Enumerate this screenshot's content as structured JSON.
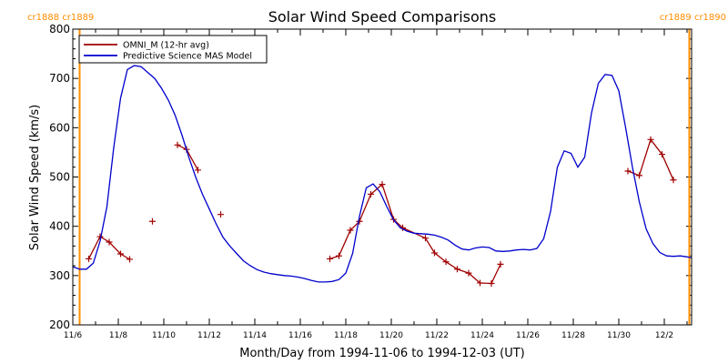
{
  "chart_data": {
    "type": "line",
    "title": "Solar Wind Speed Comparisons",
    "xlabel": "Month/Day from 1994-11-06 to 1994-12-03 (UT)",
    "ylabel": "Solar Wind Speed (km/s)",
    "x_unit": "days after 1994-11-06 00:00 UT",
    "xlim": [
      0,
      27.2
    ],
    "ylim": [
      200,
      800
    ],
    "yticks": [
      200,
      300,
      400,
      500,
      600,
      700,
      800
    ],
    "xticks": [
      {
        "x": 0,
        "label": "11/6"
      },
      {
        "x": 2,
        "label": "11/8"
      },
      {
        "x": 4,
        "label": "11/10"
      },
      {
        "x": 6,
        "label": "11/12"
      },
      {
        "x": 8,
        "label": "11/14"
      },
      {
        "x": 10,
        "label": "11/16"
      },
      {
        "x": 12,
        "label": "11/18"
      },
      {
        "x": 14,
        "label": "11/20"
      },
      {
        "x": 16,
        "label": "11/22"
      },
      {
        "x": 18,
        "label": "11/24"
      },
      {
        "x": 20,
        "label": "11/26"
      },
      {
        "x": 22,
        "label": "11/28"
      },
      {
        "x": 24,
        "label": "11/30"
      },
      {
        "x": 26,
        "label": "12/2"
      }
    ],
    "rotation_markers": [
      {
        "x": 0.3,
        "color": "#ff8c00"
      },
      {
        "x": 27.1,
        "color": "#ff8c00"
      }
    ],
    "rotation_labels": {
      "left": "cr1888 cr1889",
      "right": "cr1889 cr1890",
      "color": "#ff8c00"
    },
    "legend": {
      "position": "top-left"
    },
    "series": [
      {
        "name": "OMNI_M (12-hr avg)",
        "color": "#a00000",
        "style": "line-plus",
        "points": [
          [
            0.7,
            334
          ],
          [
            1.2,
            379
          ],
          [
            1.6,
            368
          ],
          [
            2.1,
            344
          ],
          [
            2.5,
            333
          ],
          [
            3.5,
            410,
            "isolated"
          ],
          [
            4.6,
            565
          ],
          [
            5.0,
            556
          ],
          [
            5.5,
            514
          ],
          [
            6.5,
            424,
            "isolated"
          ],
          [
            11.3,
            334
          ],
          [
            11.7,
            340
          ],
          [
            12.2,
            392
          ],
          [
            12.6,
            410
          ],
          [
            13.1,
            465
          ],
          [
            13.6,
            485
          ],
          [
            14.1,
            414
          ],
          [
            14.5,
            397
          ],
          [
            15.5,
            376
          ],
          [
            15.9,
            346
          ],
          [
            16.4,
            328
          ],
          [
            16.9,
            313
          ],
          [
            17.4,
            305
          ],
          [
            17.9,
            285
          ],
          [
            18.4,
            284
          ],
          [
            18.8,
            323
          ],
          [
            24.4,
            512
          ],
          [
            24.9,
            503
          ],
          [
            25.4,
            576
          ],
          [
            25.9,
            546
          ],
          [
            26.4,
            494
          ]
        ]
      },
      {
        "name": "Predictive Science MAS Model",
        "color": "#0000cc",
        "style": "line",
        "points": [
          [
            0.0,
            318
          ],
          [
            0.3,
            313
          ],
          [
            0.6,
            313
          ],
          [
            0.9,
            325
          ],
          [
            1.2,
            370
          ],
          [
            1.5,
            440
          ],
          [
            1.8,
            560
          ],
          [
            2.1,
            660
          ],
          [
            2.4,
            718
          ],
          [
            2.7,
            726
          ],
          [
            3.0,
            724
          ],
          [
            3.3,
            712
          ],
          [
            3.6,
            700
          ],
          [
            3.9,
            680
          ],
          [
            4.2,
            656
          ],
          [
            4.5,
            625
          ],
          [
            4.8,
            585
          ],
          [
            5.1,
            540
          ],
          [
            5.4,
            500
          ],
          [
            5.7,
            465
          ],
          [
            6.0,
            435
          ],
          [
            6.3,
            405
          ],
          [
            6.6,
            378
          ],
          [
            6.9,
            360
          ],
          [
            7.2,
            345
          ],
          [
            7.5,
            330
          ],
          [
            7.8,
            320
          ],
          [
            8.1,
            312
          ],
          [
            8.4,
            307
          ],
          [
            8.7,
            304
          ],
          [
            9.0,
            302
          ],
          [
            9.3,
            300
          ],
          [
            9.6,
            299
          ],
          [
            9.9,
            297
          ],
          [
            10.2,
            294
          ],
          [
            10.5,
            290
          ],
          [
            10.8,
            287
          ],
          [
            11.1,
            287
          ],
          [
            11.4,
            288
          ],
          [
            11.7,
            292
          ],
          [
            12.0,
            305
          ],
          [
            12.3,
            345
          ],
          [
            12.6,
            420
          ],
          [
            12.9,
            478
          ],
          [
            13.2,
            486
          ],
          [
            13.5,
            470
          ],
          [
            13.8,
            440
          ],
          [
            14.1,
            413
          ],
          [
            14.4,
            397
          ],
          [
            14.7,
            390
          ],
          [
            15.0,
            386
          ],
          [
            15.3,
            385
          ],
          [
            15.6,
            384
          ],
          [
            15.9,
            382
          ],
          [
            16.2,
            378
          ],
          [
            16.5,
            372
          ],
          [
            16.8,
            362
          ],
          [
            17.1,
            354
          ],
          [
            17.4,
            352
          ],
          [
            17.7,
            356
          ],
          [
            18.0,
            358
          ],
          [
            18.3,
            357
          ],
          [
            18.6,
            350
          ],
          [
            18.9,
            349
          ],
          [
            19.2,
            350
          ],
          [
            19.5,
            352
          ],
          [
            19.8,
            353
          ],
          [
            20.1,
            352
          ],
          [
            20.4,
            355
          ],
          [
            20.7,
            375
          ],
          [
            21.0,
            430
          ],
          [
            21.3,
            520
          ],
          [
            21.6,
            553
          ],
          [
            21.9,
            548
          ],
          [
            22.2,
            520
          ],
          [
            22.5,
            540
          ],
          [
            22.8,
            630
          ],
          [
            23.1,
            690
          ],
          [
            23.4,
            708
          ],
          [
            23.7,
            706
          ],
          [
            24.0,
            675
          ],
          [
            24.3,
            600
          ],
          [
            24.6,
            520
          ],
          [
            24.9,
            450
          ],
          [
            25.2,
            395
          ],
          [
            25.5,
            365
          ],
          [
            25.8,
            347
          ],
          [
            26.1,
            340
          ],
          [
            26.4,
            339
          ],
          [
            26.7,
            340
          ],
          [
            27.0,
            338
          ],
          [
            27.2,
            336
          ]
        ]
      }
    ]
  }
}
